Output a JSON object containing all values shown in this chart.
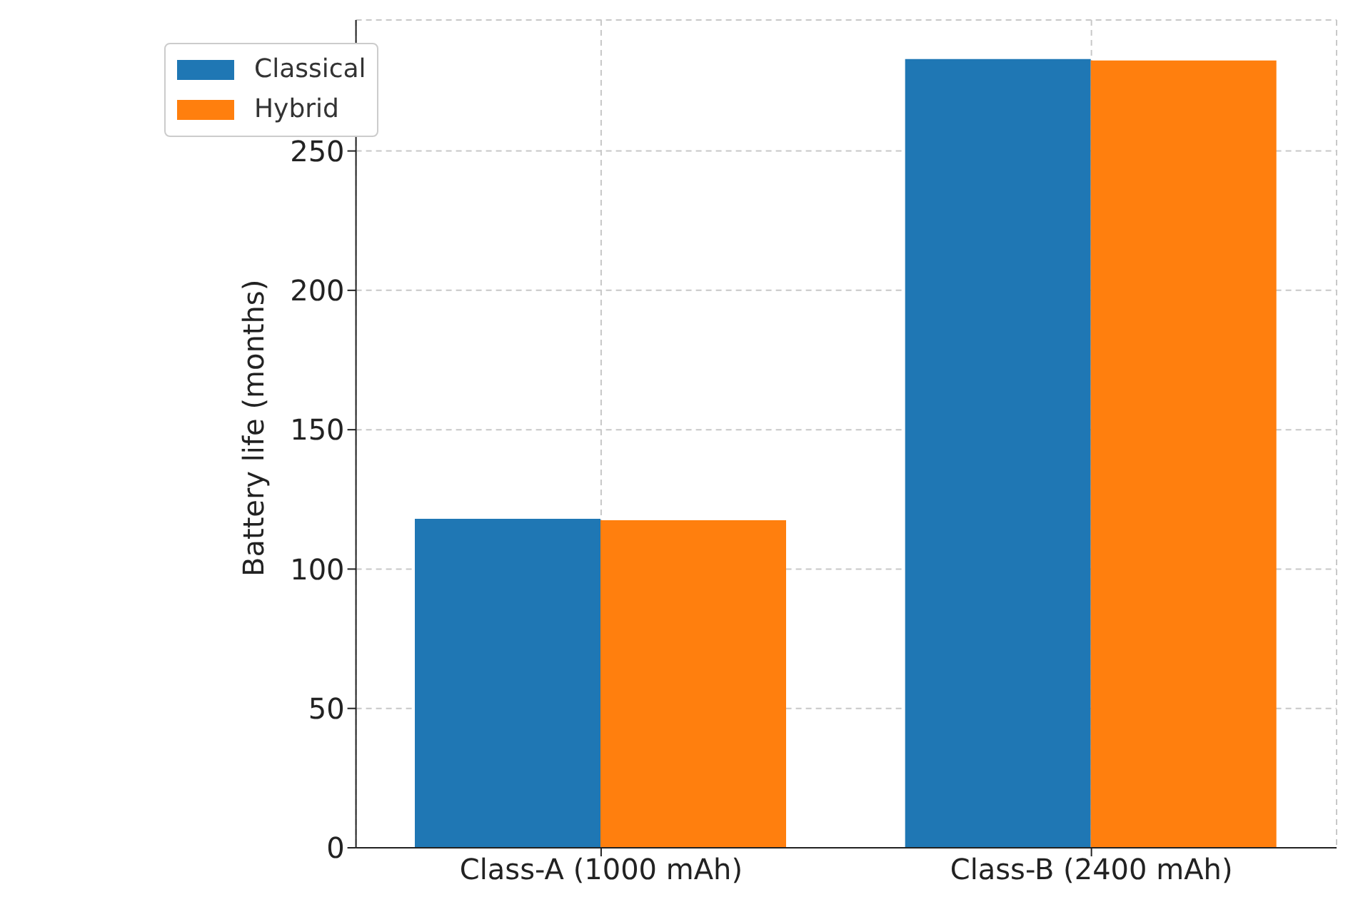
{
  "chart_data": {
    "type": "bar",
    "ylabel": "Battery life (months)",
    "categories": [
      "Class-A (1000 mAh)",
      "Class-B (2400 mAh)"
    ],
    "series": [
      {
        "name": "Classical",
        "color": "#1f77b4",
        "values": [
          118,
          283
        ]
      },
      {
        "name": "Hybrid",
        "color": "#ff7f0e",
        "values": [
          117.5,
          282.5
        ]
      }
    ],
    "ylim": [
      0,
      297
    ],
    "yticks": [
      0,
      50,
      100,
      150,
      200,
      250
    ],
    "grid": true,
    "legend": "top left"
  }
}
